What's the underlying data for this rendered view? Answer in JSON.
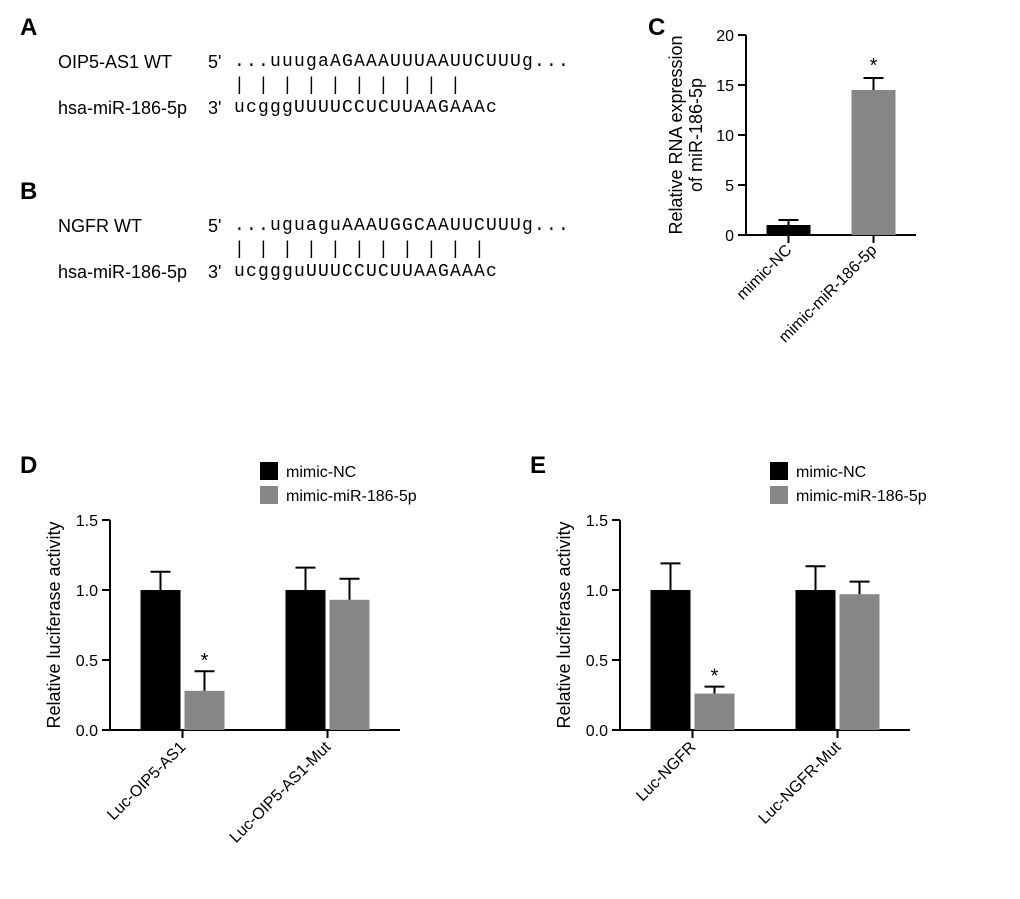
{
  "panelA": {
    "label": "A",
    "seq1_label": "OIP5-AS1 WT",
    "seq1_dir": "5'",
    "seq1_text": "...uuugaAGAAAUUUAAUUCUUUg...",
    "match": "       |  | |   | | | | | | |",
    "seq2_label": "hsa-miR-186-5p",
    "seq2_dir": "3'",
    "seq2_text": "  ucgggUUUUCCUCUUAAGAAAc"
  },
  "panelB": {
    "label": "B",
    "seq1_label": "NGFR WT",
    "seq1_dir": "5'",
    "seq1_text": "...uguaguAAAUGGCAAUUCUUUg...",
    "match": "        | | |  |   | | | | | | |",
    "seq2_label": "hsa-miR-186-5p",
    "seq2_dir": "3'",
    "seq2_text": "   ucggguUUUCCUCUUAAGAAAc"
  },
  "panelC": {
    "label": "C",
    "y_label": "Relative RNA expression\nof miR-186-5p",
    "y_max": 20,
    "y_step": 5,
    "colors": {
      "nc": "#000000",
      "mimic": "#878787"
    },
    "bars": [
      {
        "cat": "mimic-NC",
        "value": 1.0,
        "err": 0.5,
        "color_key": "nc"
      },
      {
        "cat": "mimic-miR-186-5p",
        "value": 14.5,
        "err": 1.2,
        "color_key": "mimic",
        "sig": "*"
      }
    ]
  },
  "panelD": {
    "label": "D",
    "y_label": "Relative luciferase activity",
    "y_max": 1.5,
    "y_step": 0.5,
    "legend": [
      {
        "label": "mimic-NC",
        "color": "#000000"
      },
      {
        "label": "mimic-miR-186-5p",
        "color": "#878787"
      }
    ],
    "groups": [
      {
        "cat": "Luc-OIP5-AS1",
        "bars": [
          {
            "value": 1.0,
            "err": 0.13,
            "color": "#000000"
          },
          {
            "value": 0.28,
            "err": 0.14,
            "color": "#878787",
            "sig": "*"
          }
        ]
      },
      {
        "cat": "Luc-OIP5-AS1-Mut",
        "bars": [
          {
            "value": 1.0,
            "err": 0.16,
            "color": "#000000"
          },
          {
            "value": 0.93,
            "err": 0.15,
            "color": "#878787"
          }
        ]
      }
    ]
  },
  "panelE": {
    "label": "E",
    "y_label": "Relative luciferase activity",
    "y_max": 1.5,
    "y_step": 0.5,
    "legend": [
      {
        "label": "mimic-NC",
        "color": "#000000"
      },
      {
        "label": "mimic-miR-186-5p",
        "color": "#878787"
      }
    ],
    "groups": [
      {
        "cat": "Luc-NGFR",
        "bars": [
          {
            "value": 1.0,
            "err": 0.19,
            "color": "#000000"
          },
          {
            "value": 0.26,
            "err": 0.05,
            "color": "#878787",
            "sig": "*"
          }
        ]
      },
      {
        "cat": "Luc-NGFR-Mut",
        "bars": [
          {
            "value": 1.0,
            "err": 0.17,
            "color": "#000000"
          },
          {
            "value": 0.97,
            "err": 0.09,
            "color": "#878787"
          }
        ]
      }
    ]
  }
}
